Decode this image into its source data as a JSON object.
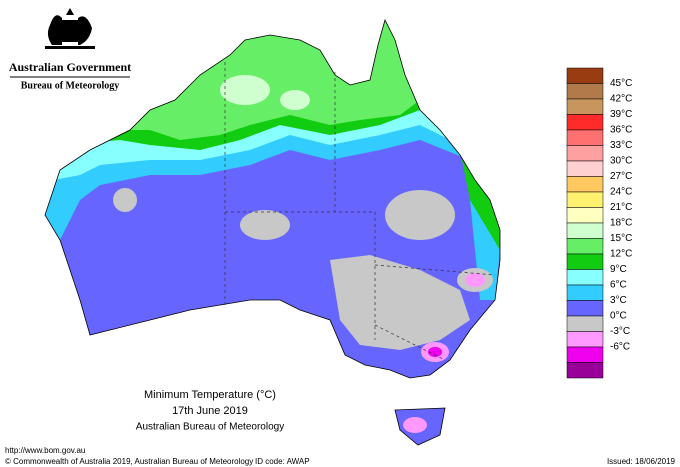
{
  "logo": {
    "line1": "Australian Government",
    "line2": "Bureau of Meteorology"
  },
  "legend": {
    "labels": [
      "45°C",
      "42°C",
      "39°C",
      "36°C",
      "33°C",
      "30°C",
      "27°C",
      "24°C",
      "21°C",
      "18°C",
      "15°C",
      "12°C",
      "9°C",
      "6°C",
      "3°C",
      "0°C",
      "-3°C",
      "-6°C"
    ],
    "colors": [
      "#9a3c12",
      "#b07a4a",
      "#c8955e",
      "#ff2a2a",
      "#ff7070",
      "#ffa0a0",
      "#ffd0d0",
      "#ffc860",
      "#fff070",
      "#ffffc0",
      "#cfffcf",
      "#66ee66",
      "#11cc11",
      "#88ffff",
      "#33ccff",
      "#6666ff",
      "#c8c8c8",
      "#ff99ff",
      "#ee00ee",
      "#990099"
    ]
  },
  "caption": {
    "title": "Minimum Temperature (°C)",
    "date": "17th June 2019",
    "source": "Australian Bureau of Meteorology"
  },
  "footer": {
    "url": "http://www.bom.gov.au",
    "copyright": "© Commonwealth of Australia 2019, Australian Bureau of Meteorology",
    "id": "ID code: AWAP",
    "issued": "Issued: 18/06/2019"
  }
}
